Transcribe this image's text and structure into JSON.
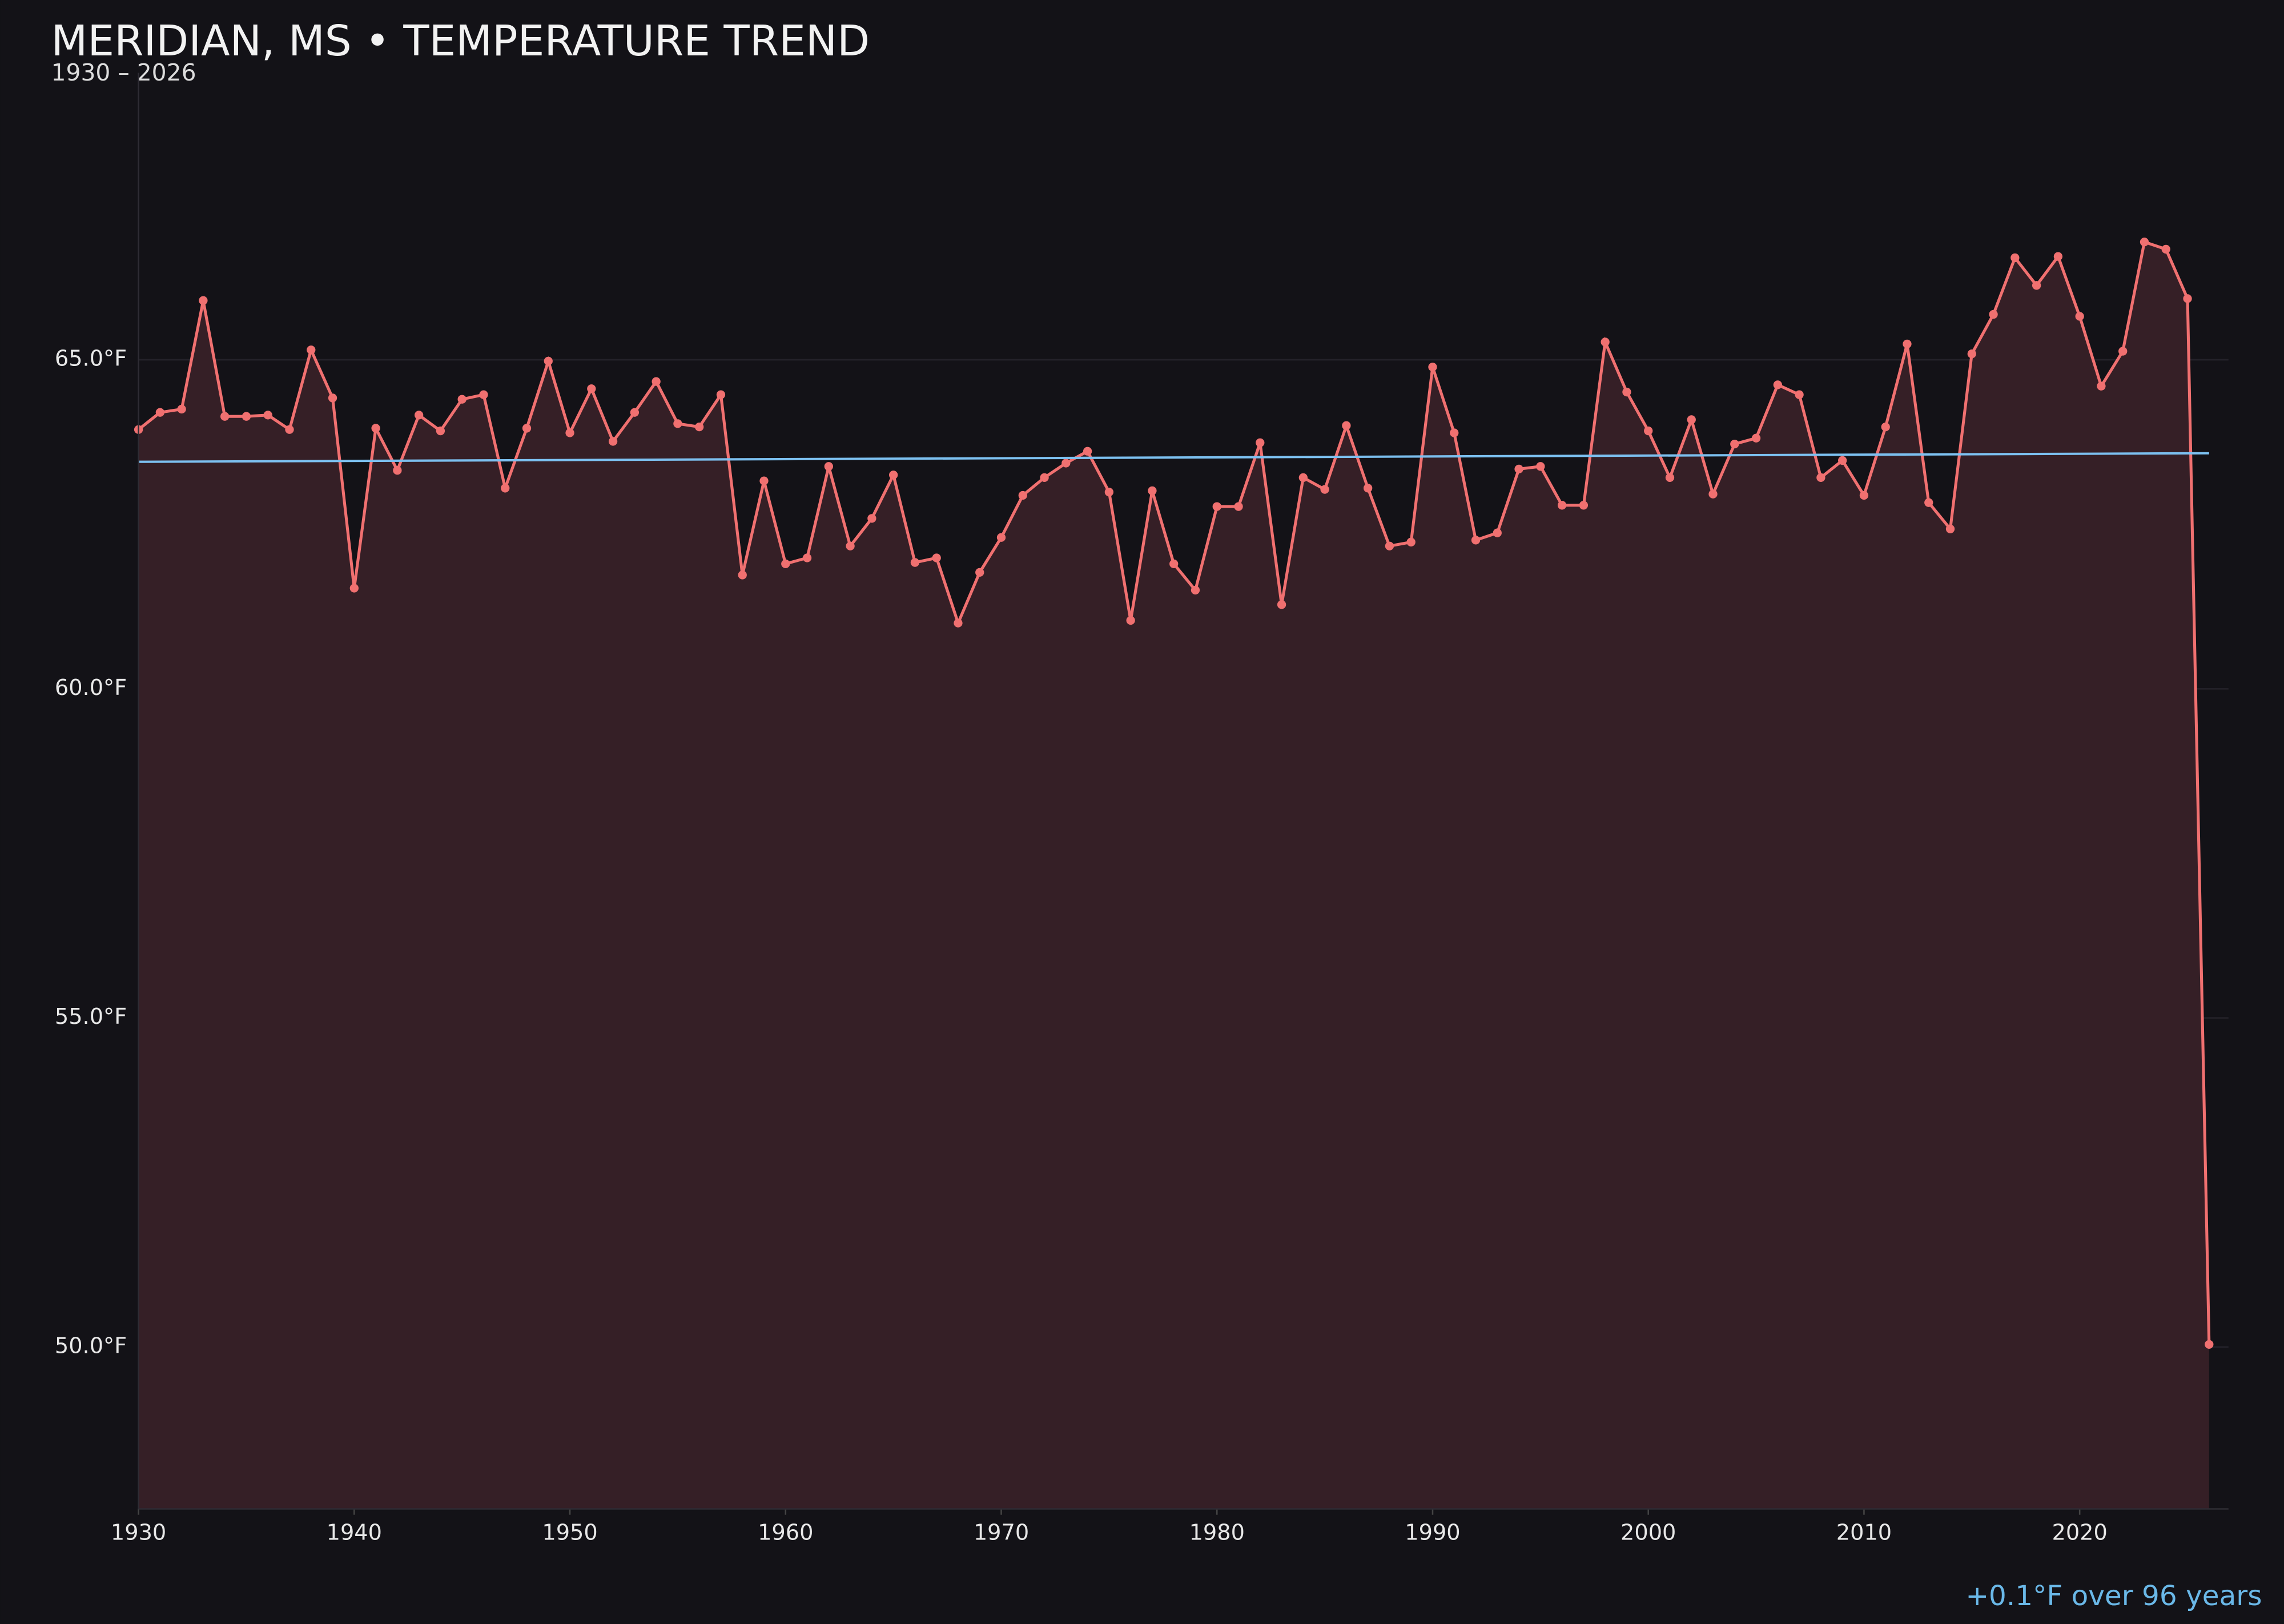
{
  "chart_data": {
    "type": "line",
    "title": "MERIDIAN, MS • TEMPERATURE TREND",
    "subtitle": "1930 – 2026",
    "x": [
      1930,
      1931,
      1932,
      1933,
      1934,
      1935,
      1936,
      1937,
      1938,
      1939,
      1940,
      1941,
      1942,
      1943,
      1944,
      1945,
      1946,
      1947,
      1948,
      1949,
      1950,
      1951,
      1952,
      1953,
      1954,
      1955,
      1956,
      1957,
      1958,
      1959,
      1960,
      1961,
      1962,
      1963,
      1964,
      1965,
      1966,
      1967,
      1968,
      1969,
      1970,
      1971,
      1972,
      1973,
      1974,
      1975,
      1976,
      1977,
      1978,
      1979,
      1980,
      1981,
      1982,
      1983,
      1984,
      1985,
      1986,
      1987,
      1988,
      1989,
      1990,
      1991,
      1992,
      1993,
      1994,
      1995,
      1996,
      1997,
      1998,
      1999,
      2000,
      2001,
      2002,
      2003,
      2004,
      2005,
      2006,
      2007,
      2008,
      2009,
      2010,
      2011,
      2012,
      2013,
      2014,
      2015,
      2016,
      2017,
      2018,
      2019,
      2020,
      2021,
      2022,
      2023,
      2024,
      2025,
      2026
    ],
    "series": [
      {
        "color": "#f07070",
        "fill": "#351f26",
        "values": [
          63.94,
          64.2,
          64.25,
          65.9,
          64.14,
          64.14,
          64.16,
          63.94,
          65.15,
          64.42,
          61.53,
          63.96,
          63.32,
          64.16,
          63.92,
          64.4,
          64.47,
          63.05,
          63.96,
          64.98,
          63.89,
          64.56,
          63.76,
          64.2,
          64.67,
          64.03,
          63.98,
          64.47,
          61.73,
          63.16,
          61.9,
          61.99,
          63.38,
          62.17,
          62.59,
          63.25,
          61.92,
          61.99,
          61.0,
          61.77,
          62.3,
          62.94,
          63.21,
          63.43,
          63.61,
          62.99,
          61.04,
          63.01,
          61.9,
          61.5,
          62.77,
          62.77,
          63.74,
          61.28,
          63.21,
          63.03,
          64.0,
          63.05,
          62.17,
          62.23,
          64.89,
          63.89,
          62.26,
          62.37,
          63.34,
          63.38,
          62.79,
          62.79,
          65.27,
          64.51,
          63.92,
          63.21,
          64.09,
          62.96,
          63.72,
          63.81,
          64.62,
          64.47,
          63.21,
          63.47,
          62.94,
          63.98,
          65.24,
          62.83,
          62.43,
          65.09,
          65.69,
          66.55,
          66.13,
          66.57,
          65.66,
          64.6,
          65.13,
          66.79,
          66.68,
          65.93,
          50.04
        ]
      }
    ],
    "trend": {
      "color": "#7cc0f0",
      "x": [
        1930,
        2026
      ],
      "values": [
        63.45,
        63.58
      ]
    },
    "annotation": "+0.1°F over 96 years",
    "xlim": [
      1930,
      2026.9
    ],
    "ylim": [
      47.54,
      69.36
    ],
    "xticks": [
      1930,
      1940,
      1950,
      1960,
      1970,
      1980,
      1990,
      2000,
      2010,
      2020
    ],
    "yticks": [
      {
        "value": 50,
        "label": "50.0°F"
      },
      {
        "value": 55,
        "label": "55.0°F"
      },
      {
        "value": 60,
        "label": "60.0°F"
      },
      {
        "value": 65,
        "label": "65.0°F"
      }
    ],
    "grid": true
  }
}
